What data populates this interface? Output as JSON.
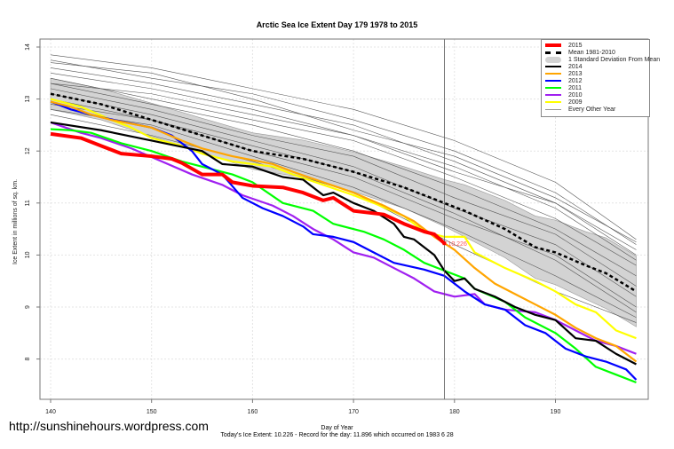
{
  "chart_data": {
    "type": "line",
    "title": "Arctic Sea Ice Extent Day 179 1978 to 2015",
    "xlabel": "Day of Year",
    "ylabel": "Ice Extent in millions of sq. km.",
    "xlim": [
      139.0,
      199.0
    ],
    "ylim": [
      7.2,
      14.15
    ],
    "xticks": [
      140,
      150,
      160,
      170,
      180,
      190
    ],
    "yticks": [
      8,
      9,
      10,
      11,
      12,
      13,
      14
    ],
    "grid": true,
    "legend_position": "top-right",
    "current_day": 179,
    "current_value_label": "10.226",
    "footer": "Today's Ice Extent: 10.226  - Record for the day: 11.896 which occurred on 1983 6 28",
    "watermark": "http://sunshinehours.wordpress.com",
    "legend": [
      {
        "label": "2015",
        "color": "#ff0000",
        "style": "thick"
      },
      {
        "label": "Mean 1981-2010",
        "color": "#000000",
        "style": "dashed"
      },
      {
        "label": "1 Standard Deviation From Mean",
        "color": "#d3d3d3",
        "style": "band"
      },
      {
        "label": "2014",
        "color": "#000000",
        "style": "solid"
      },
      {
        "label": "2013",
        "color": "#ffa500",
        "style": "solid"
      },
      {
        "label": "2012",
        "color": "#0000ff",
        "style": "solid"
      },
      {
        "label": "2011",
        "color": "#00ff00",
        "style": "solid"
      },
      {
        "label": "2010",
        "color": "#a020f0",
        "style": "solid"
      },
      {
        "label": "2009",
        "color": "#ffff00",
        "style": "solid"
      },
      {
        "label": "Every Other Year",
        "color": "#999999",
        "style": "thin"
      }
    ],
    "mean": {
      "x": [
        140,
        145,
        150,
        155,
        160,
        165,
        170,
        175,
        179,
        181,
        185,
        188,
        190,
        193,
        195,
        198
      ],
      "y": [
        13.1,
        12.9,
        12.6,
        12.3,
        12.0,
        11.85,
        11.6,
        11.3,
        11.0,
        10.85,
        10.5,
        10.15,
        10.05,
        9.8,
        9.65,
        9.3
      ],
      "sd": [
        0.3,
        0.3,
        0.32,
        0.33,
        0.35,
        0.36,
        0.38,
        0.4,
        0.45,
        0.5,
        0.55,
        0.6,
        0.62,
        0.65,
        0.68,
        0.68
      ]
    },
    "series": [
      {
        "name": "2015",
        "color": "#ff0000",
        "width": 4,
        "points": [
          [
            140,
            12.33
          ],
          [
            143,
            12.25
          ],
          [
            145,
            12.1
          ],
          [
            147,
            11.95
          ],
          [
            150,
            11.9
          ],
          [
            152,
            11.85
          ],
          [
            153,
            11.77
          ],
          [
            155,
            11.55
          ],
          [
            157,
            11.55
          ],
          [
            158,
            11.4
          ],
          [
            160,
            11.33
          ],
          [
            163,
            11.3
          ],
          [
            165,
            11.2
          ],
          [
            167,
            11.05
          ],
          [
            168,
            11.1
          ],
          [
            170,
            10.85
          ],
          [
            173,
            10.78
          ],
          [
            175,
            10.6
          ],
          [
            177,
            10.45
          ],
          [
            178,
            10.4
          ],
          [
            179,
            10.226
          ]
        ]
      },
      {
        "name": "2014",
        "color": "#000000",
        "width": 2.2,
        "points": [
          [
            140,
            12.55
          ],
          [
            145,
            12.4
          ],
          [
            150,
            12.2
          ],
          [
            155,
            12.0
          ],
          [
            157,
            11.75
          ],
          [
            160,
            11.7
          ],
          [
            163,
            11.5
          ],
          [
            165,
            11.45
          ],
          [
            167,
            11.15
          ],
          [
            168,
            11.2
          ],
          [
            170,
            11.0
          ],
          [
            172,
            10.85
          ],
          [
            174,
            10.6
          ],
          [
            175,
            10.35
          ],
          [
            176,
            10.3
          ],
          [
            178,
            10.0
          ],
          [
            179,
            9.7
          ],
          [
            180,
            9.5
          ],
          [
            181,
            9.55
          ],
          [
            182,
            9.35
          ],
          [
            184,
            9.2
          ],
          [
            186,
            9.0
          ],
          [
            188,
            8.85
          ],
          [
            190,
            8.75
          ],
          [
            192,
            8.4
          ],
          [
            194,
            8.35
          ],
          [
            196,
            8.1
          ],
          [
            198,
            7.9
          ]
        ]
      },
      {
        "name": "2013",
        "color": "#ffa500",
        "width": 2.2,
        "points": [
          [
            140,
            12.95
          ],
          [
            142,
            12.85
          ],
          [
            144,
            12.7
          ],
          [
            146,
            12.6
          ],
          [
            150,
            12.45
          ],
          [
            153,
            12.2
          ],
          [
            155,
            12.05
          ],
          [
            158,
            11.9
          ],
          [
            162,
            11.75
          ],
          [
            164,
            11.6
          ],
          [
            167,
            11.4
          ],
          [
            170,
            11.2
          ],
          [
            173,
            10.95
          ],
          [
            176,
            10.65
          ],
          [
            178,
            10.35
          ],
          [
            180,
            10.1
          ],
          [
            182,
            9.75
          ],
          [
            184,
            9.45
          ],
          [
            186,
            9.25
          ],
          [
            188,
            9.05
          ],
          [
            190,
            8.85
          ],
          [
            192,
            8.6
          ],
          [
            194,
            8.4
          ],
          [
            196,
            8.25
          ],
          [
            198,
            7.95
          ]
        ]
      },
      {
        "name": "2012",
        "color": "#0000ff",
        "width": 2.2,
        "points": [
          [
            140,
            12.95
          ],
          [
            142,
            12.8
          ],
          [
            145,
            12.65
          ],
          [
            150,
            12.45
          ],
          [
            152,
            12.3
          ],
          [
            154,
            12.0
          ],
          [
            155,
            11.75
          ],
          [
            157,
            11.55
          ],
          [
            159,
            11.1
          ],
          [
            161,
            10.9
          ],
          [
            163,
            10.75
          ],
          [
            165,
            10.55
          ],
          [
            166,
            10.4
          ],
          [
            168,
            10.35
          ],
          [
            170,
            10.25
          ],
          [
            172,
            10.05
          ],
          [
            174,
            9.85
          ],
          [
            177,
            9.72
          ],
          [
            179,
            9.6
          ],
          [
            181,
            9.3
          ],
          [
            183,
            9.05
          ],
          [
            185,
            8.95
          ],
          [
            187,
            8.65
          ],
          [
            189,
            8.5
          ],
          [
            191,
            8.2
          ],
          [
            193,
            8.05
          ],
          [
            195,
            7.95
          ],
          [
            197,
            7.8
          ],
          [
            198,
            7.6
          ]
        ]
      },
      {
        "name": "2011",
        "color": "#00ff00",
        "width": 2.2,
        "points": [
          [
            140,
            12.42
          ],
          [
            142,
            12.4
          ],
          [
            144,
            12.35
          ],
          [
            147,
            12.15
          ],
          [
            150,
            12.0
          ],
          [
            153,
            11.8
          ],
          [
            155,
            11.7
          ],
          [
            158,
            11.55
          ],
          [
            160,
            11.4
          ],
          [
            163,
            11.0
          ],
          [
            166,
            10.85
          ],
          [
            168,
            10.6
          ],
          [
            171,
            10.45
          ],
          [
            173,
            10.3
          ],
          [
            175,
            10.1
          ],
          [
            177,
            9.85
          ],
          [
            179,
            9.7
          ],
          [
            181,
            9.55
          ],
          [
            182,
            9.35
          ],
          [
            185,
            9.1
          ],
          [
            187,
            8.8
          ],
          [
            190,
            8.5
          ],
          [
            192,
            8.2
          ],
          [
            194,
            7.85
          ],
          [
            196,
            7.7
          ],
          [
            198,
            7.55
          ]
        ]
      },
      {
        "name": "2010",
        "color": "#a020f0",
        "width": 2.2,
        "points": [
          [
            140,
            12.55
          ],
          [
            143,
            12.35
          ],
          [
            145,
            12.25
          ],
          [
            148,
            12.05
          ],
          [
            151,
            11.8
          ],
          [
            154,
            11.55
          ],
          [
            157,
            11.35
          ],
          [
            159,
            11.15
          ],
          [
            162,
            10.95
          ],
          [
            164,
            10.75
          ],
          [
            166,
            10.5
          ],
          [
            168,
            10.3
          ],
          [
            170,
            10.05
          ],
          [
            172,
            9.95
          ],
          [
            174,
            9.75
          ],
          [
            176,
            9.55
          ],
          [
            178,
            9.3
          ],
          [
            180,
            9.2
          ],
          [
            182,
            9.25
          ],
          [
            183,
            9.05
          ],
          [
            185,
            8.95
          ],
          [
            188,
            8.9
          ],
          [
            190,
            8.75
          ],
          [
            192,
            8.55
          ],
          [
            194,
            8.35
          ],
          [
            196,
            8.25
          ],
          [
            198,
            8.1
          ]
        ]
      },
      {
        "name": "2009",
        "color": "#ffff00",
        "width": 2.2,
        "points": [
          [
            140,
            13.0
          ],
          [
            143,
            12.85
          ],
          [
            146,
            12.6
          ],
          [
            148,
            12.45
          ],
          [
            150,
            12.25
          ],
          [
            153,
            12.1
          ],
          [
            155,
            11.95
          ],
          [
            158,
            11.8
          ],
          [
            160,
            11.75
          ],
          [
            162,
            11.7
          ],
          [
            164,
            11.55
          ],
          [
            167,
            11.35
          ],
          [
            170,
            11.15
          ],
          [
            172,
            11.0
          ],
          [
            175,
            10.75
          ],
          [
            177,
            10.45
          ],
          [
            179,
            10.35
          ],
          [
            181,
            10.35
          ],
          [
            182,
            10.05
          ],
          [
            185,
            9.75
          ],
          [
            188,
            9.5
          ],
          [
            190,
            9.3
          ],
          [
            192,
            9.05
          ],
          [
            194,
            8.9
          ],
          [
            196,
            8.55
          ],
          [
            198,
            8.4
          ]
        ]
      }
    ],
    "other_years": {
      "x": [
        140,
        150,
        160,
        170,
        180,
        190,
        198
      ],
      "series": [
        [
          13.85,
          13.6,
          13.2,
          12.8,
          12.2,
          11.4,
          10.3
        ],
        [
          13.75,
          13.4,
          13.1,
          12.6,
          12.0,
          11.2,
          10.2
        ],
        [
          13.7,
          13.5,
          13.0,
          12.4,
          11.9,
          11.1,
          10.25
        ],
        [
          13.6,
          13.3,
          12.9,
          12.5,
          11.8,
          11.0,
          10.0
        ],
        [
          13.5,
          13.2,
          12.8,
          12.3,
          11.7,
          10.9,
          9.9
        ],
        [
          13.4,
          13.0,
          12.6,
          12.2,
          11.5,
          10.7,
          9.8
        ],
        [
          13.3,
          12.9,
          12.5,
          12.0,
          11.3,
          10.5,
          9.6
        ],
        [
          13.2,
          12.8,
          12.3,
          11.9,
          11.1,
          10.4,
          9.4
        ],
        [
          13.1,
          12.7,
          12.2,
          11.7,
          10.9,
          10.2,
          9.2
        ],
        [
          12.9,
          12.6,
          12.0,
          11.5,
          10.7,
          10.0,
          9.0
        ],
        [
          12.8,
          12.5,
          11.9,
          11.3,
          10.5,
          9.6,
          8.8
        ],
        [
          12.7,
          12.3,
          11.8,
          11.2,
          10.2,
          9.3,
          8.7
        ],
        [
          13.3,
          13.1,
          12.7,
          12.3,
          11.6,
          11.0,
          10.1
        ],
        [
          13.0,
          12.6,
          12.1,
          11.6,
          10.8,
          9.9,
          8.9
        ]
      ]
    }
  }
}
